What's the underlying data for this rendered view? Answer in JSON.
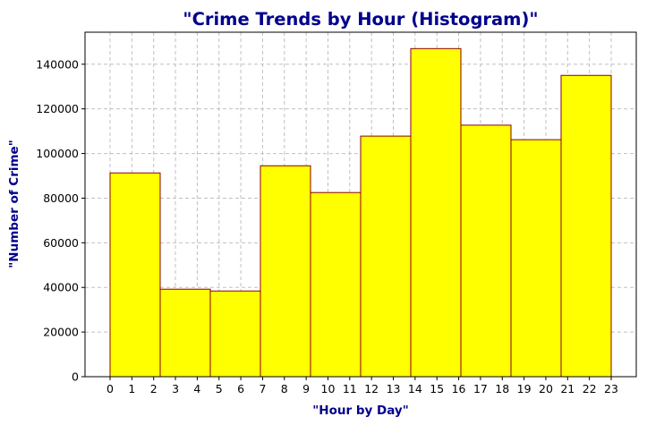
{
  "chart_data": {
    "type": "bar",
    "subtype": "histogram",
    "title": "\"Crime Trends by Hour (Histogram)\"",
    "xlabel": "\"Hour by Day\"",
    "ylabel": "\"Number of Crime\"",
    "bin_edges": [
      0,
      2.3,
      4.6,
      6.9,
      9.2,
      11.5,
      13.8,
      16.1,
      18.4,
      20.7,
      23
    ],
    "values": [
      91300,
      39200,
      38400,
      94500,
      82500,
      107800,
      147000,
      112700,
      106200,
      135000
    ],
    "x_ticks": [
      0,
      1,
      2,
      3,
      4,
      5,
      6,
      7,
      8,
      9,
      10,
      11,
      12,
      13,
      14,
      15,
      16,
      17,
      18,
      19,
      20,
      21,
      22,
      23
    ],
    "y_ticks": [
      0,
      20000,
      40000,
      60000,
      80000,
      100000,
      120000,
      140000
    ],
    "xlim": [
      -1.15,
      24.15
    ],
    "ylim": [
      0,
      154350
    ],
    "grid": true,
    "colors": {
      "bar_fill": "#ffff00",
      "bar_edge": "#8b0000",
      "title": "#00008b",
      "axis_label": "#00008b",
      "grid": "#c0c0c0"
    }
  }
}
